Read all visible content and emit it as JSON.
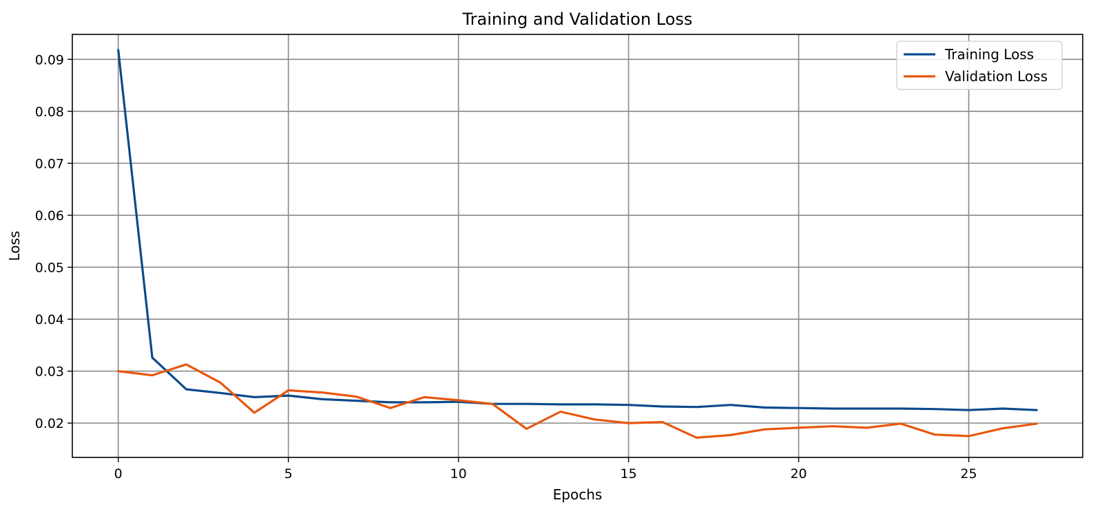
{
  "chart_data": {
    "type": "line",
    "title": "Training and Validation Loss",
    "xlabel": "Epochs",
    "ylabel": "Loss",
    "xlim": [
      -1.35,
      28.35
    ],
    "ylim": [
      0.0134,
      0.0948
    ],
    "xticks": [
      0,
      5,
      10,
      15,
      20,
      25
    ],
    "yticks": [
      0.02,
      0.03,
      0.04,
      0.05,
      0.06,
      0.07,
      0.08,
      0.09
    ],
    "grid": true,
    "legend_position": "top-right",
    "x": [
      0,
      1,
      2,
      3,
      4,
      5,
      6,
      7,
      8,
      9,
      10,
      11,
      12,
      13,
      14,
      15,
      16,
      17,
      18,
      19,
      20,
      21,
      22,
      23,
      24,
      25,
      26,
      27
    ],
    "series": [
      {
        "name": "Training Loss",
        "color": "#0c4a8c",
        "values": [
          0.0918,
          0.0326,
          0.0265,
          0.0258,
          0.025,
          0.0253,
          0.0246,
          0.0243,
          0.024,
          0.024,
          0.0241,
          0.0237,
          0.0237,
          0.0236,
          0.0236,
          0.0235,
          0.0232,
          0.0231,
          0.0235,
          0.023,
          0.0229,
          0.0228,
          0.0228,
          0.0228,
          0.0227,
          0.0225,
          0.0228,
          0.0225
        ]
      },
      {
        "name": "Validation Loss",
        "color": "#e8570e",
        "values": [
          0.03,
          0.0292,
          0.0313,
          0.0278,
          0.022,
          0.0263,
          0.0259,
          0.0251,
          0.0229,
          0.025,
          0.0244,
          0.0237,
          0.0189,
          0.0222,
          0.0207,
          0.02,
          0.0202,
          0.0172,
          0.0177,
          0.0188,
          0.0191,
          0.0194,
          0.0191,
          0.0199,
          0.0178,
          0.0175,
          0.019,
          0.0199
        ]
      }
    ]
  }
}
